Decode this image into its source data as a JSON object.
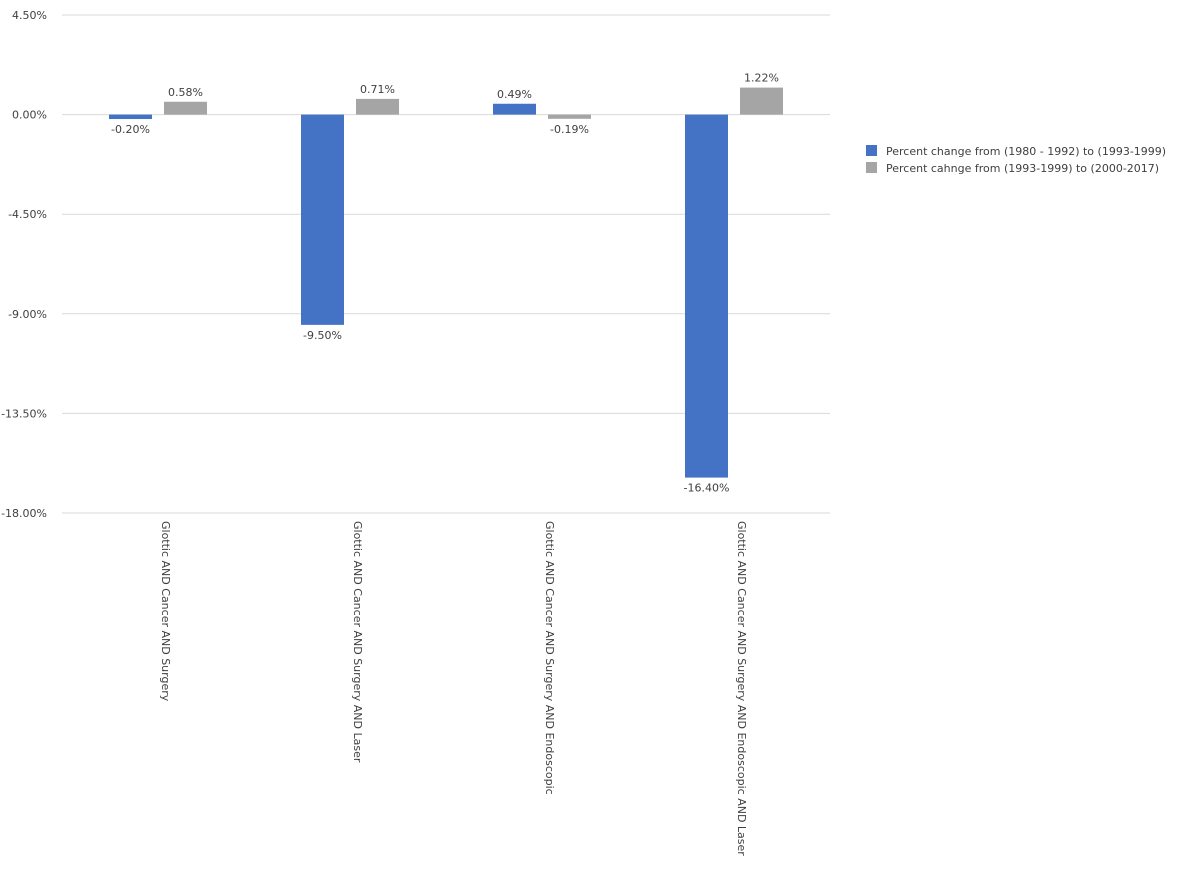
{
  "chart_data": {
    "type": "bar",
    "title": "",
    "xlabel": "",
    "ylabel": "",
    "categories": [
      "Glottic AND Cancer AND Surgery",
      "Glottic AND Cancer AND Surgery AND Laser",
      "Glottic AND Cancer AND Surgery AND Endoscopic",
      "Glottic AND Cancer AND Surgery AND Endoscopic AND Laser"
    ],
    "series": [
      {
        "name": "Percent change from (1980 - 1992) to (1993-1999)",
        "color": "#4472C4",
        "values": [
          -0.2,
          -9.5,
          0.49,
          -16.4
        ],
        "labels": [
          "-0.20%",
          "-9.50%",
          "0.49%",
          "-16.40%"
        ]
      },
      {
        "name": "Percent cahnge from (1993-1999) to (2000-2017)",
        "color": "#A5A5A5",
        "values": [
          0.58,
          0.71,
          -0.19,
          1.22
        ],
        "labels": [
          "0.58%",
          "0.71%",
          "-0.19%",
          "1.22%"
        ]
      }
    ],
    "ylim": [
      -18.0,
      4.5
    ],
    "yticks": [
      4.5,
      0.0,
      -4.5,
      -9.0,
      -13.5,
      -18.0
    ],
    "ytick_labels": [
      "4.50%",
      "0.00%",
      "-4.50%",
      "-9.00%",
      "-13.50%",
      "-18.00%"
    ],
    "grid": true,
    "legend_position": "right"
  }
}
